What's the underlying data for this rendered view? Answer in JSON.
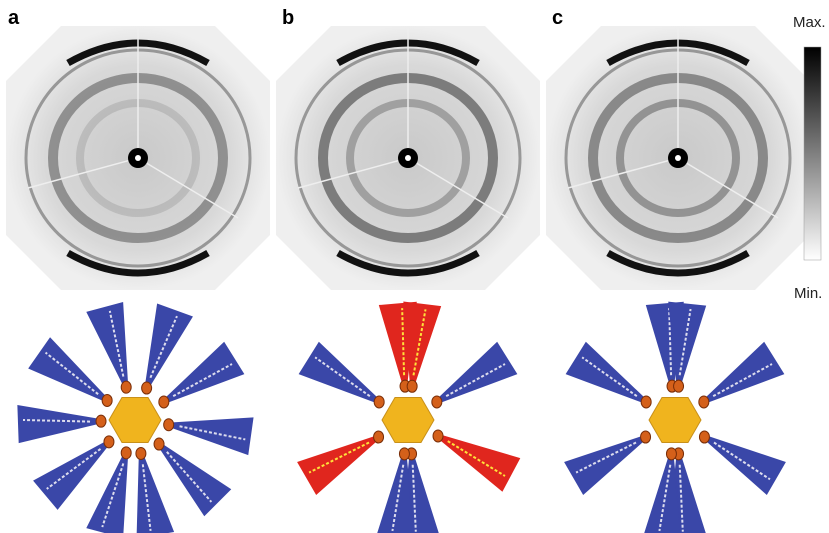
{
  "panels": [
    {
      "label": "a"
    },
    {
      "label": "b"
    },
    {
      "label": "c"
    }
  ],
  "colorbar": {
    "max": "Max.",
    "min": "Min."
  }
}
